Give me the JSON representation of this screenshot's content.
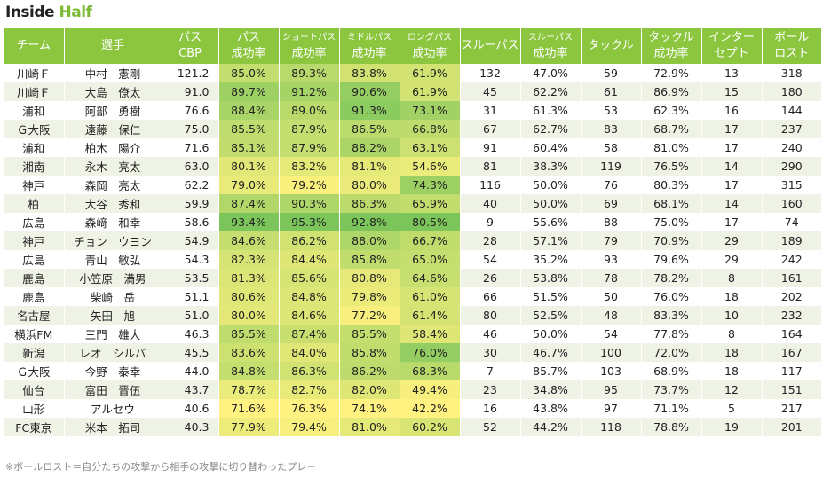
{
  "title": {
    "part1": "Inside",
    "part2": "Half"
  },
  "headers": [
    {
      "l1": "チーム",
      "l2": ""
    },
    {
      "l1": "選手",
      "l2": ""
    },
    {
      "l1": "パス",
      "l2": "CBP"
    },
    {
      "l1": "パス",
      "l2": "成功率"
    },
    {
      "l1": "ショートパス",
      "l2": "成功率"
    },
    {
      "l1": "ミドルパス",
      "l2": "成功率"
    },
    {
      "l1": "ロングパス",
      "l2": "成功率"
    },
    {
      "l1": "スルーパス",
      "l2": ""
    },
    {
      "l1": "スルーパス",
      "l2": "成功率"
    },
    {
      "l1": "タックル",
      "l2": ""
    },
    {
      "l1": "タックル",
      "l2": "成功率"
    },
    {
      "l1": "インター",
      "l2": "セプト"
    },
    {
      "l1": "ボール",
      "l2": "ロスト"
    }
  ],
  "chart_data": {
    "type": "table",
    "columns": [
      "チーム",
      "選手",
      "パスCBP",
      "パス成功率",
      "ショートパス成功率",
      "ミドルパス成功率",
      "ロングパス成功率",
      "スルーパス",
      "スルーパス成功率",
      "タックル",
      "タックル成功率",
      "インターセプト",
      "ボールロスト"
    ],
    "rows": [
      [
        "川崎Ｆ",
        "中村　憲剛",
        "121.2",
        "85.0%",
        "89.3%",
        "83.8%",
        "61.9%",
        "132",
        "47.0%",
        "59",
        "72.9%",
        "13",
        "318"
      ],
      [
        "川崎Ｆ",
        "大島　僚太",
        "91.0",
        "89.7%",
        "91.2%",
        "90.6%",
        "61.9%",
        "45",
        "62.2%",
        "61",
        "86.9%",
        "15",
        "180"
      ],
      [
        "浦和",
        "阿部　勇樹",
        "76.6",
        "88.4%",
        "89.0%",
        "91.3%",
        "73.1%",
        "31",
        "61.3%",
        "53",
        "62.3%",
        "16",
        "144"
      ],
      [
        "Ｇ大阪",
        "遠藤　保仁",
        "75.0",
        "85.5%",
        "87.9%",
        "86.5%",
        "66.8%",
        "67",
        "62.7%",
        "83",
        "68.7%",
        "17",
        "237"
      ],
      [
        "浦和",
        "柏木　陽介",
        "71.6",
        "85.1%",
        "87.9%",
        "88.2%",
        "63.1%",
        "91",
        "60.4%",
        "58",
        "81.0%",
        "17",
        "240"
      ],
      [
        "湘南",
        "永木　亮太",
        "63.0",
        "80.1%",
        "83.2%",
        "81.1%",
        "54.6%",
        "81",
        "38.3%",
        "119",
        "76.5%",
        "14",
        "290"
      ],
      [
        "神戸",
        "森岡　亮太",
        "62.2",
        "79.0%",
        "79.2%",
        "80.0%",
        "74.3%",
        "116",
        "50.0%",
        "76",
        "80.3%",
        "17",
        "315"
      ],
      [
        "柏",
        "大谷　秀和",
        "59.9",
        "87.4%",
        "90.3%",
        "86.3%",
        "65.9%",
        "40",
        "50.0%",
        "69",
        "68.1%",
        "14",
        "160"
      ],
      [
        "広島",
        "森﨑　和幸",
        "58.6",
        "93.4%",
        "95.3%",
        "92.8%",
        "80.5%",
        "9",
        "55.6%",
        "88",
        "75.0%",
        "17",
        "74"
      ],
      [
        "神戸",
        "チョン　ウヨン",
        "54.9",
        "84.6%",
        "86.2%",
        "88.0%",
        "66.7%",
        "28",
        "57.1%",
        "79",
        "70.9%",
        "29",
        "189"
      ],
      [
        "広島",
        "青山　敏弘",
        "54.3",
        "82.3%",
        "84.4%",
        "85.8%",
        "65.0%",
        "54",
        "35.2%",
        "93",
        "79.6%",
        "29",
        "242"
      ],
      [
        "鹿島",
        "小笠原　満男",
        "53.5",
        "81.3%",
        "85.6%",
        "80.8%",
        "64.6%",
        "26",
        "53.8%",
        "78",
        "78.2%",
        "8",
        "161"
      ],
      [
        "鹿島",
        "柴崎　岳",
        "51.1",
        "80.6%",
        "84.8%",
        "79.8%",
        "61.0%",
        "66",
        "51.5%",
        "50",
        "76.0%",
        "18",
        "202"
      ],
      [
        "名古屋",
        "矢田　旭",
        "51.0",
        "80.0%",
        "84.6%",
        "77.2%",
        "61.4%",
        "80",
        "52.5%",
        "48",
        "83.3%",
        "10",
        "232"
      ],
      [
        "横浜FM",
        "三門　雄大",
        "46.3",
        "85.5%",
        "87.4%",
        "85.5%",
        "58.4%",
        "46",
        "50.0%",
        "54",
        "77.8%",
        "8",
        "164"
      ],
      [
        "新潟",
        "レオ　シルバ",
        "45.5",
        "83.6%",
        "84.0%",
        "85.8%",
        "76.0%",
        "30",
        "46.7%",
        "100",
        "72.0%",
        "18",
        "167"
      ],
      [
        "Ｇ大阪",
        "今野　泰幸",
        "44.0",
        "84.8%",
        "86.3%",
        "86.2%",
        "68.3%",
        "7",
        "85.7%",
        "103",
        "68.9%",
        "18",
        "117"
      ],
      [
        "仙台",
        "富田　晋伍",
        "43.7",
        "78.7%",
        "82.7%",
        "82.0%",
        "49.4%",
        "23",
        "34.8%",
        "95",
        "73.7%",
        "12",
        "151"
      ],
      [
        "山形",
        "アルセウ",
        "40.6",
        "71.6%",
        "76.3%",
        "74.1%",
        "42.2%",
        "16",
        "43.8%",
        "97",
        "71.1%",
        "5",
        "217"
      ],
      [
        "FC東京",
        "米本　拓司",
        "40.3",
        "77.9%",
        "79.4%",
        "81.0%",
        "60.2%",
        "52",
        "44.2%",
        "118",
        "78.8%",
        "19",
        "201"
      ]
    ]
  },
  "note": "※ボールロスト＝自分たちの攻撃から相手の攻撃に切り替わったプレー",
  "colors": {
    "header": "#8cc63f",
    "row_alt": "#eef3e6",
    "scale_low": "#fff280",
    "scale_high": "#7cc55a"
  }
}
